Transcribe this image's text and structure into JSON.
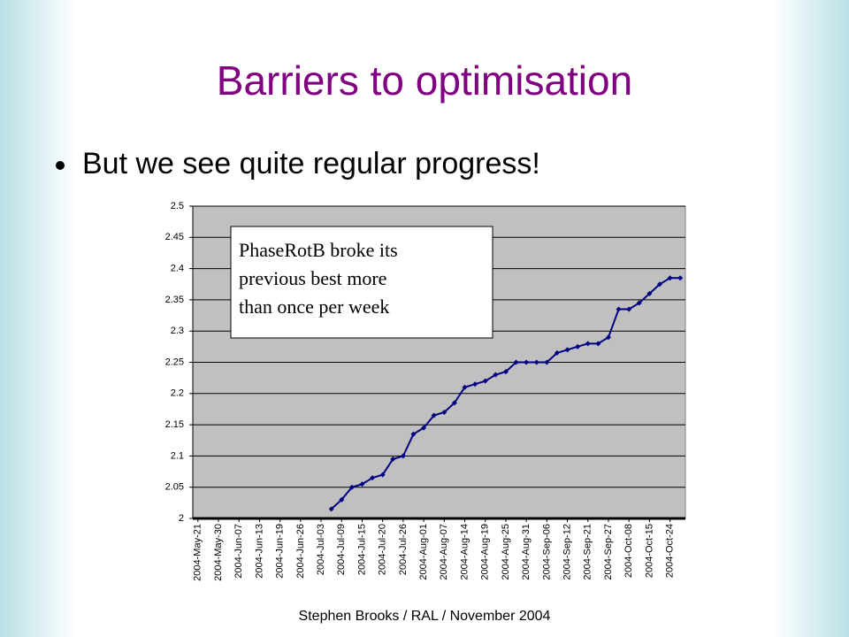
{
  "slide": {
    "title": "Barriers to optimisation",
    "bullet": "But we see quite regular progress!",
    "footer": "Stephen Brooks / RAL / November 2004"
  },
  "chart_data": {
    "type": "line",
    "categories": [
      "2004-May-21",
      null,
      "2004-May-30",
      null,
      "2004-Jun-07",
      null,
      "2004-Jun-13",
      null,
      "2004-Jun-19",
      null,
      "2004-Jun-26",
      null,
      "2004-Jul-03",
      null,
      "2004-Jul-09",
      null,
      "2004-Jul-15",
      null,
      "2004-Jul-20",
      null,
      "2004-Jul-26",
      null,
      "2004-Aug-01",
      null,
      "2004-Aug-07",
      null,
      "2004-Aug-14",
      null,
      "2004-Aug-19",
      null,
      "2004-Aug-25",
      null,
      "2004-Aug-31",
      null,
      "2004-Sep-06",
      null,
      "2004-Sep-12",
      null,
      "2004-Sep-21",
      null,
      "2004-Sep-27",
      null,
      "2004-Oct-08",
      null,
      "2004-Oct-15",
      null,
      "2004-Oct-24",
      null
    ],
    "series": [
      {
        "color": "#000080",
        "values": [
          null,
          null,
          null,
          null,
          null,
          null,
          null,
          null,
          null,
          null,
          null,
          null,
          null,
          2.015,
          2.03,
          2.05,
          2.055,
          2.065,
          2.07,
          2.095,
          2.1,
          2.135,
          2.145,
          2.165,
          2.17,
          2.185,
          2.21,
          2.215,
          2.22,
          2.23,
          2.235,
          2.25,
          2.25,
          2.25,
          2.25,
          2.265,
          2.27,
          2.275,
          2.28,
          2.28,
          2.29,
          2.335,
          2.335,
          2.345,
          2.36,
          2.375,
          2.385,
          2.385
        ]
      }
    ],
    "ylim": [
      2,
      2.5
    ],
    "yticks": [
      2,
      2.05,
      2.1,
      2.15,
      2.2,
      2.25,
      2.3,
      2.35,
      2.4,
      2.45,
      2.5
    ],
    "grid": true,
    "annotation": [
      "PhaseRotB broke its",
      "previous best more",
      "than once per week"
    ]
  }
}
